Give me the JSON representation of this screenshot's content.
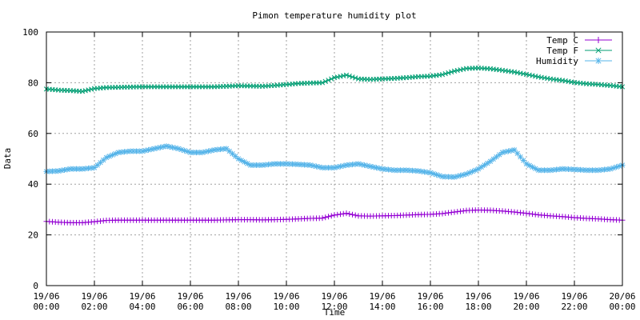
{
  "chart_data": {
    "type": "line",
    "title": "Pimon temperature   humidity plot",
    "xlabel": "Time",
    "ylabel": "Data",
    "ylim": [
      0,
      100
    ],
    "xlim": [
      "19/06 00:00",
      "20/06 00:00"
    ],
    "yticks": [
      "0",
      "20",
      "40",
      "60",
      "80",
      "100"
    ],
    "xticks": [
      {
        "date": "19/06",
        "time": "00:00"
      },
      {
        "date": "19/06",
        "time": "02:00"
      },
      {
        "date": "19/06",
        "time": "04:00"
      },
      {
        "date": "19/06",
        "time": "06:00"
      },
      {
        "date": "19/06",
        "time": "08:00"
      },
      {
        "date": "19/06",
        "time": "10:00"
      },
      {
        "date": "19/06",
        "time": "12:00"
      },
      {
        "date": "19/06",
        "time": "14:00"
      },
      {
        "date": "19/06",
        "time": "16:00"
      },
      {
        "date": "19/06",
        "time": "18:00"
      },
      {
        "date": "19/06",
        "time": "20:00"
      },
      {
        "date": "19/06",
        "time": "22:00"
      },
      {
        "date": "20/06",
        "time": "00:00"
      }
    ],
    "grid": true,
    "legend_position": "top-right",
    "x": [
      "00:00",
      "00:30",
      "01:00",
      "01:30",
      "02:00",
      "02:30",
      "03:00",
      "03:30",
      "04:00",
      "04:30",
      "05:00",
      "05:30",
      "06:00",
      "06:30",
      "07:00",
      "07:30",
      "08:00",
      "08:30",
      "09:00",
      "09:30",
      "10:00",
      "10:30",
      "11:00",
      "11:30",
      "12:00",
      "12:30",
      "13:00",
      "13:30",
      "14:00",
      "14:30",
      "15:00",
      "15:30",
      "16:00",
      "16:30",
      "17:00",
      "17:30",
      "18:00",
      "18:30",
      "19:00",
      "19:30",
      "20:00",
      "20:30",
      "21:00",
      "21:30",
      "22:00",
      "22:30",
      "23:00",
      "23:30",
      "24:00"
    ],
    "series": [
      {
        "name": "Temp C",
        "color": "#9400d3",
        "marker": "plus",
        "values": [
          25.3,
          25.0,
          24.8,
          24.8,
          25.2,
          25.7,
          25.8,
          25.8,
          25.8,
          25.8,
          25.8,
          25.8,
          25.8,
          25.8,
          25.8,
          25.9,
          26.0,
          26.0,
          25.9,
          26.0,
          26.1,
          26.3,
          26.5,
          26.6,
          27.8,
          28.5,
          27.5,
          27.4,
          27.5,
          27.6,
          27.8,
          28.0,
          28.1,
          28.4,
          29.0,
          29.6,
          29.8,
          29.7,
          29.4,
          29.0,
          28.5,
          27.9,
          27.5,
          27.2,
          26.8,
          26.5,
          26.3,
          26.0,
          25.8
        ]
      },
      {
        "name": "Temp F",
        "color": "#009e73",
        "marker": "x",
        "values": [
          77.5,
          77.1,
          76.9,
          76.6,
          77.7,
          78.1,
          78.2,
          78.3,
          78.4,
          78.4,
          78.4,
          78.4,
          78.4,
          78.4,
          78.4,
          78.6,
          78.8,
          78.7,
          78.6,
          78.9,
          79.3,
          79.7,
          79.9,
          80.0,
          82.0,
          83.0,
          81.5,
          81.3,
          81.5,
          81.7,
          82.0,
          82.4,
          82.6,
          83.2,
          84.6,
          85.6,
          85.8,
          85.5,
          84.9,
          84.2,
          83.3,
          82.3,
          81.5,
          80.9,
          80.1,
          79.6,
          79.3,
          78.9,
          78.4
        ]
      },
      {
        "name": "Humidity",
        "color": "#56b4e9",
        "marker": "star",
        "values": [
          45.0,
          45.2,
          46.0,
          46.0,
          46.5,
          50.5,
          52.5,
          53.0,
          53.0,
          54.0,
          55.0,
          54.0,
          52.5,
          52.5,
          53.5,
          54.0,
          50.0,
          47.5,
          47.5,
          48.0,
          48.0,
          47.8,
          47.5,
          46.5,
          46.5,
          47.5,
          48.0,
          47.0,
          46.0,
          45.5,
          45.5,
          45.2,
          44.5,
          43.0,
          42.8,
          44.0,
          46.0,
          49.0,
          52.5,
          53.5,
          48.0,
          45.5,
          45.5,
          46.0,
          45.8,
          45.5,
          45.5,
          46.0,
          47.5
        ]
      }
    ]
  }
}
